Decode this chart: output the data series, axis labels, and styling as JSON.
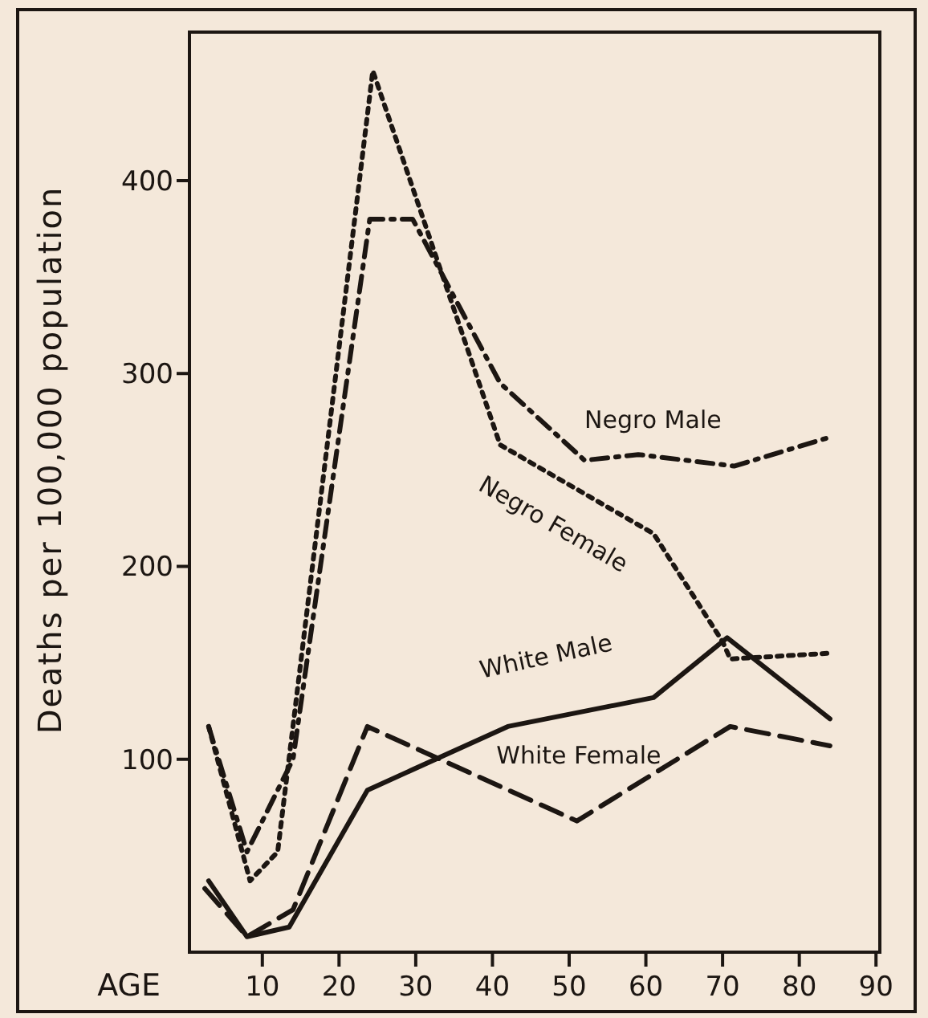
{
  "chart_data": {
    "type": "line",
    "xlabel": "AGE",
    "ylabel": "Deaths per 100,000 population",
    "xlim": [
      0.5,
      90.5
    ],
    "ylim": [
      0,
      477
    ],
    "xticks": [
      10,
      20,
      30,
      40,
      50,
      60,
      70,
      80,
      90
    ],
    "yticks": [
      100,
      200,
      300,
      400
    ],
    "grid": false,
    "legend": false,
    "marker": "none",
    "series": [
      {
        "name": "Negro Male",
        "color": "#1c1612",
        "line_style": "dashdot",
        "x": [
          3,
          8,
          14,
          24,
          29.6,
          41,
          52,
          59,
          71.5,
          84
        ],
        "values": [
          117,
          52,
          100,
          380,
          380,
          295,
          255,
          258,
          252,
          267
        ]
      },
      {
        "name": "Negro Female",
        "color": "#1c1612",
        "line_style": "dotted",
        "x": [
          3,
          8.4,
          12,
          24.4,
          41,
          61,
          70,
          71,
          84
        ],
        "values": [
          117,
          37,
          52,
          457,
          263,
          217,
          161,
          152,
          155
        ]
      },
      {
        "name": "White Male",
        "color": "#1c1612",
        "line_style": "solid",
        "x": [
          3,
          8,
          13.5,
          23.7,
          42,
          61,
          70.6,
          84
        ],
        "values": [
          37,
          8,
          13,
          84,
          117,
          132,
          163,
          121
        ]
      },
      {
        "name": "White Female",
        "color": "#1c1612",
        "line_style": "dashed",
        "x": [
          2.5,
          8,
          14,
          23.7,
          51,
          71,
          84
        ],
        "values": [
          33,
          8,
          22,
          117,
          68,
          117,
          107
        ]
      }
    ]
  }
}
